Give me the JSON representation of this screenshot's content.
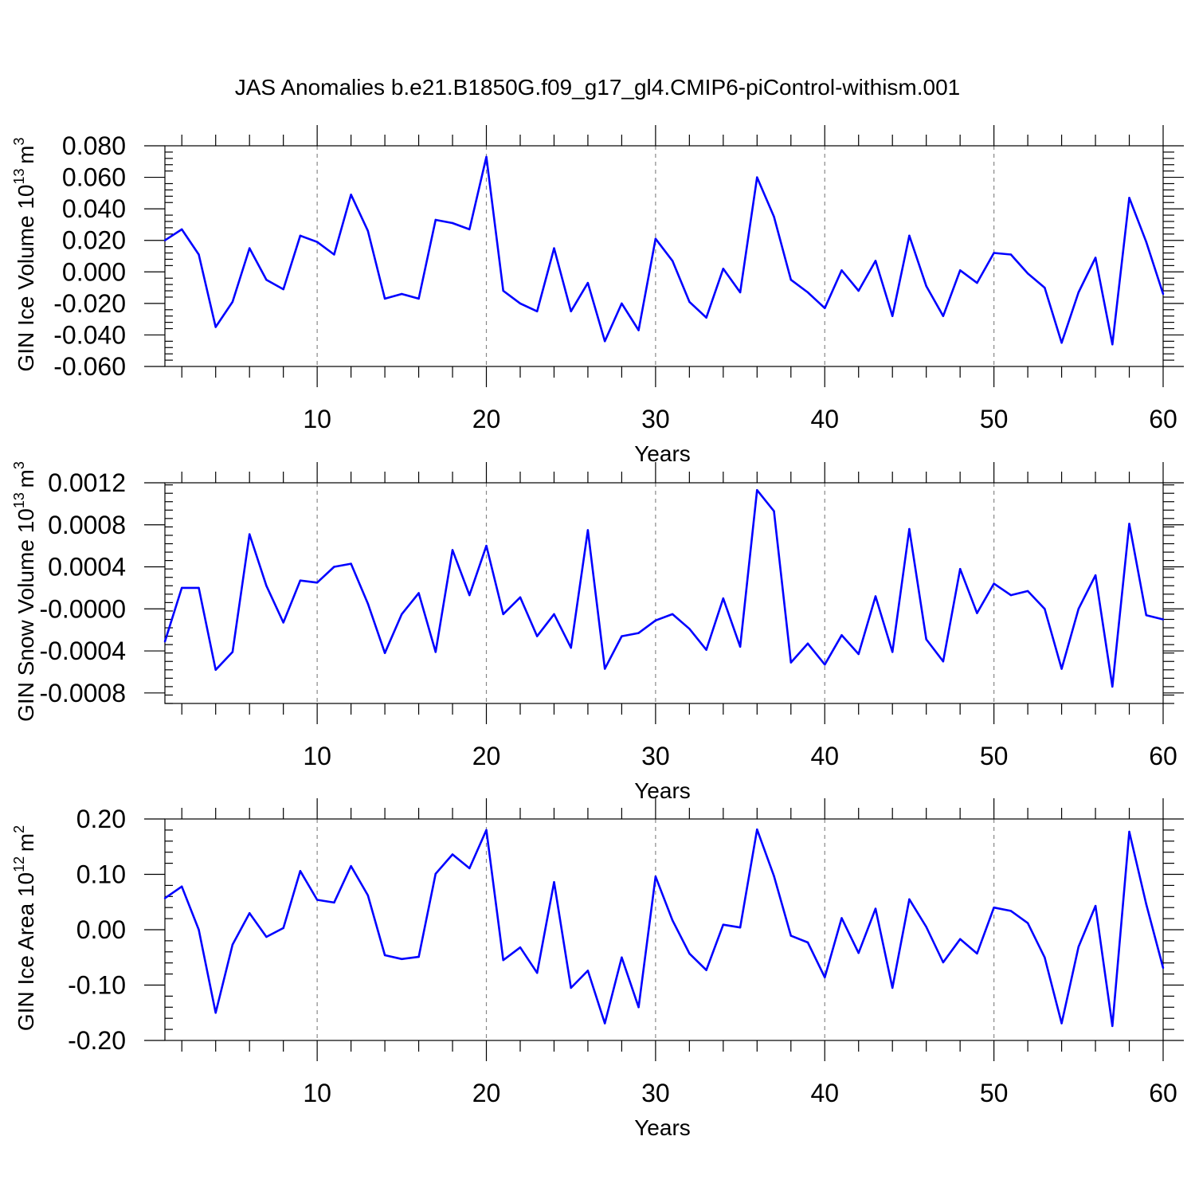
{
  "figure": {
    "title": "JAS Anomalies b.e21.B1850G.f09_g17_gl4.CMIP6-piControl-withism.001",
    "line_color": "#0000ff"
  },
  "chart_data": [
    {
      "type": "line",
      "xlabel": "Years",
      "ylabel": "GIN Ice Volume 10",
      "ylabel_sup": "13",
      "ylabel_unit": "m",
      "ylabel_unit_sup": "3",
      "xlim": [
        1,
        60
      ],
      "ylim": [
        -0.06,
        0.08
      ],
      "xticks": [
        10,
        20,
        30,
        40,
        50,
        60
      ],
      "xtick_labels": [
        "10",
        "20",
        "30",
        "40",
        "50",
        "60"
      ],
      "yticks": [
        -0.06,
        -0.04,
        -0.02,
        0.0,
        0.02,
        0.04,
        0.06,
        0.08
      ],
      "ytick_labels": [
        "-0.060",
        "-0.040",
        "-0.020",
        "0.000",
        "0.020",
        "0.040",
        "0.060",
        "0.080"
      ],
      "grid_x": [
        10,
        20,
        30,
        40,
        50
      ],
      "series": [
        {
          "x": [
            1,
            2,
            3,
            4,
            5,
            6,
            7,
            8,
            9,
            10,
            11,
            12,
            13,
            14,
            15,
            16,
            17,
            18,
            19,
            20,
            21,
            22,
            23,
            24,
            25,
            26,
            27,
            28,
            29,
            30,
            31,
            32,
            33,
            34,
            35,
            36,
            37,
            38,
            39,
            40,
            41,
            42,
            43,
            44,
            45,
            46,
            47,
            48,
            49,
            50,
            51,
            52,
            53,
            54,
            55,
            56,
            57,
            58,
            59,
            60
          ],
          "values": [
            0.02,
            0.027,
            0.011,
            -0.035,
            -0.019,
            0.015,
            -0.005,
            -0.011,
            0.023,
            0.019,
            0.011,
            0.049,
            0.026,
            -0.017,
            -0.014,
            -0.017,
            0.033,
            0.031,
            0.027,
            0.073,
            -0.012,
            -0.02,
            -0.025,
            0.015,
            -0.025,
            -0.007,
            -0.044,
            -0.02,
            -0.037,
            0.021,
            0.007,
            -0.019,
            -0.029,
            0.002,
            -0.013,
            0.06,
            0.035,
            -0.005,
            -0.013,
            -0.023,
            0.001,
            -0.012,
            0.007,
            -0.028,
            0.023,
            -0.009,
            -0.028,
            0.001,
            -0.007,
            0.012,
            0.011,
            -0.001,
            -0.01,
            -0.045,
            -0.013,
            0.009,
            -0.046,
            0.047,
            0.019,
            -0.014
          ]
        }
      ]
    },
    {
      "type": "line",
      "xlabel": "Years",
      "ylabel": "GIN Snow Volume 10",
      "ylabel_sup": "13",
      "ylabel_unit": "m",
      "ylabel_unit_sup": "3",
      "xlim": [
        1,
        60
      ],
      "ylim": [
        -0.0009,
        0.0012
      ],
      "xticks": [
        10,
        20,
        30,
        40,
        50,
        60
      ],
      "xtick_labels": [
        "10",
        "20",
        "30",
        "40",
        "50",
        "60"
      ],
      "yticks": [
        -0.0008,
        -0.0004,
        0.0,
        0.0004,
        0.0008,
        0.0012
      ],
      "ytick_labels": [
        "-0.0008",
        "-0.0004",
        "-0.0000",
        "0.0004",
        "0.0008",
        "0.0012"
      ],
      "grid_x": [
        10,
        20,
        30,
        40,
        50
      ],
      "series": [
        {
          "x": [
            1,
            2,
            3,
            4,
            5,
            6,
            7,
            8,
            9,
            10,
            11,
            12,
            13,
            14,
            15,
            16,
            17,
            18,
            19,
            20,
            21,
            22,
            23,
            24,
            25,
            26,
            27,
            28,
            29,
            30,
            31,
            32,
            33,
            34,
            35,
            36,
            37,
            38,
            39,
            40,
            41,
            42,
            43,
            44,
            45,
            46,
            47,
            48,
            49,
            50,
            51,
            52,
            53,
            54,
            55,
            56,
            57,
            58,
            59,
            60
          ],
          "values": [
            -0.00031,
            0.0002,
            0.0002,
            -0.00058,
            -0.00041,
            0.00071,
            0.00022,
            -0.00013,
            0.00027,
            0.00025,
            0.0004,
            0.00043,
            5e-05,
            -0.00042,
            -5e-05,
            0.00015,
            -0.00041,
            0.00056,
            0.00013,
            0.0006,
            -5e-05,
            0.00011,
            -0.00026,
            -5e-05,
            -0.00037,
            0.00075,
            -0.00057,
            -0.00026,
            -0.00023,
            -0.00011,
            -5e-05,
            -0.00019,
            -0.00039,
            0.0001,
            -0.00036,
            0.00113,
            0.00093,
            -0.00051,
            -0.00033,
            -0.00053,
            -0.00025,
            -0.00043,
            0.00012,
            -0.00041,
            0.00076,
            -0.00029,
            -0.0005,
            0.00038,
            -4e-05,
            0.00024,
            0.00013,
            0.00017,
            0.0,
            -0.00057,
            0.0,
            0.00032,
            -0.00074,
            0.00081,
            -6e-05,
            -0.0001
          ]
        }
      ]
    },
    {
      "type": "line",
      "xlabel": "Years",
      "ylabel": "GIN Ice Area 10",
      "ylabel_sup": "12",
      "ylabel_unit": "m",
      "ylabel_unit_sup": "2",
      "xlim": [
        1,
        60
      ],
      "ylim": [
        -0.2,
        0.2
      ],
      "xticks": [
        10,
        20,
        30,
        40,
        50,
        60
      ],
      "xtick_labels": [
        "10",
        "20",
        "30",
        "40",
        "50",
        "60"
      ],
      "yticks": [
        -0.2,
        -0.1,
        0.0,
        0.1,
        0.2
      ],
      "ytick_labels": [
        "-0.20",
        "-0.10",
        "0.00",
        "0.10",
        "0.20"
      ],
      "grid_x": [
        10,
        20,
        30,
        40,
        50
      ],
      "series": [
        {
          "x": [
            1,
            2,
            3,
            4,
            5,
            6,
            7,
            8,
            9,
            10,
            11,
            12,
            13,
            14,
            15,
            16,
            17,
            18,
            19,
            20,
            21,
            22,
            23,
            24,
            25,
            26,
            27,
            28,
            29,
            30,
            31,
            32,
            33,
            34,
            35,
            36,
            37,
            38,
            39,
            40,
            41,
            42,
            43,
            44,
            45,
            46,
            47,
            48,
            49,
            50,
            51,
            52,
            53,
            54,
            55,
            56,
            57,
            58,
            59,
            60
          ],
          "values": [
            0.057,
            0.078,
            0.0,
            -0.15,
            -0.027,
            0.03,
            -0.013,
            0.003,
            0.106,
            0.054,
            0.049,
            0.115,
            0.062,
            -0.046,
            -0.053,
            -0.049,
            0.101,
            0.136,
            0.111,
            0.18,
            -0.055,
            -0.032,
            -0.078,
            0.086,
            -0.105,
            -0.074,
            -0.169,
            -0.05,
            -0.14,
            0.096,
            0.017,
            -0.043,
            -0.073,
            0.009,
            0.004,
            0.181,
            0.097,
            -0.011,
            -0.023,
            -0.086,
            0.021,
            -0.042,
            0.038,
            -0.105,
            0.055,
            0.005,
            -0.059,
            -0.017,
            -0.043,
            0.04,
            0.034,
            0.012,
            -0.05,
            -0.169,
            -0.031,
            0.043,
            -0.174,
            0.177,
            0.046,
            -0.069
          ]
        }
      ]
    }
  ]
}
